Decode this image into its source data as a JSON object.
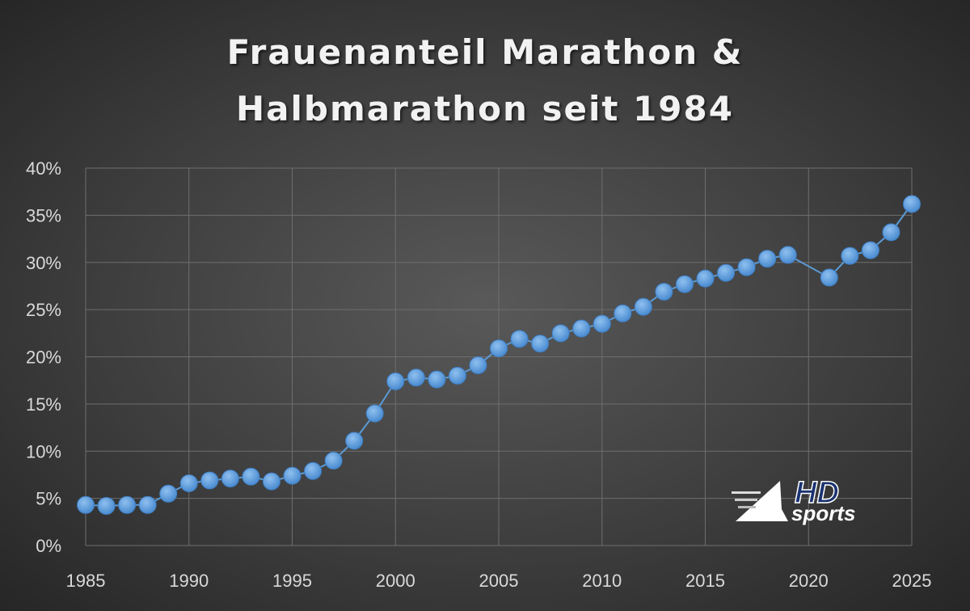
{
  "chart_data": {
    "type": "line",
    "title_line1": "Frauenanteil Marathon &",
    "title_line2": "Halbmarathon seit 1984",
    "xlabel": "",
    "ylabel": "",
    "xlim": [
      1985,
      2025
    ],
    "ylim": [
      0,
      40
    ],
    "x_ticks": [
      "1985",
      "1990",
      "1995",
      "2000",
      "2005",
      "2010",
      "2015",
      "2020",
      "2025"
    ],
    "y_ticks": [
      "0%",
      "5%",
      "10%",
      "15%",
      "20%",
      "25%",
      "30%",
      "35%",
      "40%"
    ],
    "grid": true,
    "series": [
      {
        "name": "Frauenanteil",
        "color": "#5b9bd5",
        "x": [
          1985,
          1986,
          1987,
          1988,
          1989,
          1990,
          1991,
          1992,
          1993,
          1994,
          1995,
          1996,
          1997,
          1998,
          1999,
          2000,
          2001,
          2002,
          2003,
          2004,
          2005,
          2006,
          2007,
          2008,
          2009,
          2010,
          2011,
          2012,
          2013,
          2014,
          2015,
          2016,
          2017,
          2018,
          2019,
          2021,
          2022,
          2023,
          2024,
          2025
        ],
        "values": [
          4.3,
          4.2,
          4.3,
          4.3,
          5.5,
          6.6,
          6.9,
          7.1,
          7.3,
          6.8,
          7.4,
          7.9,
          9.0,
          11.1,
          14.0,
          17.4,
          17.8,
          17.6,
          18.0,
          19.1,
          20.9,
          21.9,
          21.4,
          22.5,
          23.0,
          23.5,
          24.6,
          25.3,
          26.9,
          27.7,
          28.3,
          28.9,
          29.5,
          30.4,
          30.8,
          28.4,
          30.7,
          31.3,
          33.2,
          36.2
        ]
      }
    ]
  },
  "logo": {
    "line1": "HD",
    "line2": "sports"
  }
}
